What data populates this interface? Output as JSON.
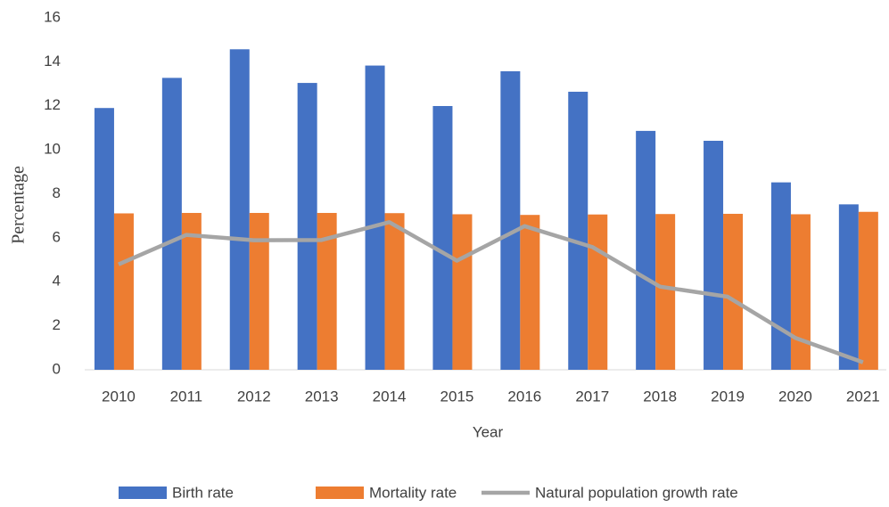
{
  "chart_data": {
    "type": "bar_line",
    "x_label": "Year",
    "y_label": "Percentage",
    "categories": [
      "2010",
      "2011",
      "2012",
      "2013",
      "2014",
      "2015",
      "2016",
      "2017",
      "2018",
      "2019",
      "2020",
      "2021"
    ],
    "series": [
      {
        "name": "Birth rate",
        "type": "bar",
        "color": "#4472c4",
        "values": [
          11.9,
          13.27,
          14.57,
          13.04,
          13.83,
          11.99,
          13.57,
          12.64,
          10.86,
          10.41,
          8.52,
          7.52
        ]
      },
      {
        "name": "Mortality rate",
        "type": "bar",
        "color": "#ed7d31",
        "values": [
          7.11,
          7.13,
          7.13,
          7.13,
          7.12,
          7.07,
          7.04,
          7.06,
          7.08,
          7.09,
          7.07,
          7.18
        ]
      },
      {
        "name": "Natural population growth rate",
        "type": "line",
        "color": "#a5a5a5",
        "values": [
          4.79,
          6.13,
          5.89,
          5.9,
          6.71,
          4.96,
          6.53,
          5.58,
          3.78,
          3.32,
          1.45,
          0.34
        ]
      }
    ],
    "ylim": [
      0,
      16
    ],
    "yticks": [
      0,
      2,
      4,
      6,
      8,
      10,
      12,
      14,
      16
    ],
    "grid": false,
    "legend": "bottom"
  }
}
